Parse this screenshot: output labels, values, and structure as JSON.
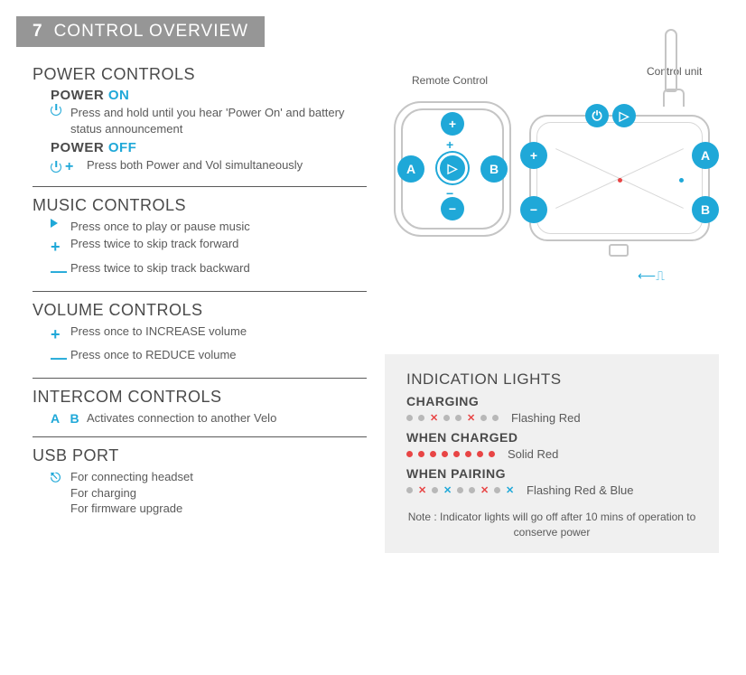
{
  "header": {
    "number": "7",
    "title": "CONTROL OVERVIEW"
  },
  "colors": {
    "accent": "#1fa8d8",
    "red": "#e84545",
    "grey_dot": "#b8b8b8",
    "text": "#4a4a4a",
    "line": "#c5c5c5",
    "box_bg": "#f0f0f0"
  },
  "sections": {
    "power": {
      "title": "POWER CONTROLS",
      "on_label": "POWER",
      "on_accent": "ON",
      "on_text": "Press and hold until you hear 'Power On' and battery status announcement",
      "off_label": "POWER",
      "off_accent": "OFF",
      "off_text": "Press both Power and Vol simultaneously"
    },
    "music": {
      "title": "MUSIC CONTROLS",
      "play": "Press once to play or pause music",
      "forward": "Press twice to skip track forward",
      "backward": "Press twice to skip track backward"
    },
    "volume": {
      "title": "VOLUME CONTROLS",
      "up": "Press once to INCREASE volume",
      "down": "Press once to REDUCE volume"
    },
    "intercom": {
      "title": "INTERCOM CONTROLS",
      "ab": "A  B",
      "text": "Activates connection to another Velo"
    },
    "usb": {
      "title": "USB PORT",
      "l1": "For connecting headset",
      "l2": "For charging",
      "l3": "For firmware upgrade"
    }
  },
  "diagram": {
    "remote_label": "Remote Control",
    "unit_label": "Control unit",
    "buttons": {
      "A": "A",
      "B": "B",
      "plus": "+",
      "minus": "−",
      "play": "▷",
      "power": "⏻"
    }
  },
  "lights": {
    "title": "INDICATION LIGHTS",
    "charging": {
      "label": "CHARGING",
      "pattern": [
        "g",
        "g",
        "xr",
        "g",
        "g",
        "xr",
        "g",
        "g"
      ],
      "text": "Flashing Red"
    },
    "charged": {
      "label": "WHEN CHARGED",
      "pattern": [
        "r",
        "r",
        "r",
        "r",
        "r",
        "r",
        "r",
        "r"
      ],
      "text": "Solid Red"
    },
    "pairing": {
      "label": "WHEN PAIRING",
      "pattern": [
        "g",
        "xr",
        "g",
        "xb",
        "g",
        "g",
        "xr",
        "g",
        "xb"
      ],
      "text": "Flashing Red & Blue"
    },
    "note": "Note : Indicator lights will go off after 10 mins of operation to conserve power"
  }
}
